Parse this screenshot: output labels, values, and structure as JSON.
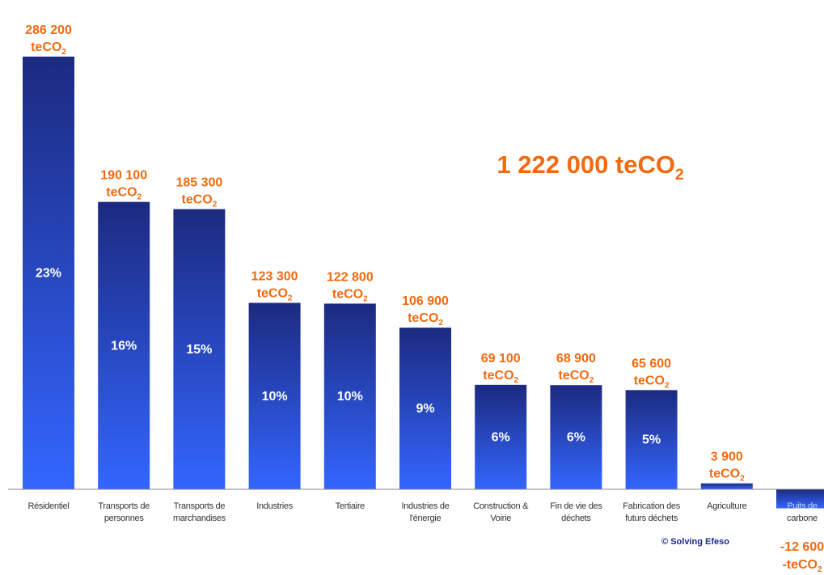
{
  "chart_data": {
    "type": "bar",
    "unit": "teCO2",
    "total_label": "1 222 000 teCO2",
    "total_main": "1 222 000 teCO",
    "total_sub": "2",
    "credit": "© Solving Efeso",
    "colors": {
      "bar_top": "#1c2a80",
      "bar_bottom": "#3366ff",
      "value_label": "#f26a10",
      "percent_label": "#ffffff",
      "axis": "#888888"
    },
    "bars": [
      {
        "category": [
          "Résidentiel"
        ],
        "value": 286200,
        "value_label": "286 200",
        "unit_label": "teCO2",
        "unit_main": "teCO",
        "unit_sub": "2",
        "percent": "23%"
      },
      {
        "category": [
          "Transports de",
          "personnes"
        ],
        "value": 190100,
        "value_label": "190 100",
        "unit_label": "teCO2",
        "unit_main": "teCO",
        "unit_sub": "2",
        "percent": "16%"
      },
      {
        "category": [
          "Transports de",
          "marchandises"
        ],
        "value": 185300,
        "value_label": "185 300",
        "unit_label": "teCO2",
        "unit_main": "teCO",
        "unit_sub": "2",
        "percent": "15%"
      },
      {
        "category": [
          "Industries"
        ],
        "value": 123300,
        "value_label": "123 300",
        "unit_label": "teCO2",
        "unit_main": "teCO",
        "unit_sub": "2",
        "percent": "10%"
      },
      {
        "category": [
          "Tertiaire"
        ],
        "value": 122800,
        "value_label": "122 800",
        "unit_label": "teCO2",
        "unit_main": "teCO",
        "unit_sub": "2",
        "percent": "10%"
      },
      {
        "category": [
          "Industries de",
          "l'énergie"
        ],
        "value": 106900,
        "value_label": "106 900",
        "unit_label": "teCO2",
        "unit_main": "teCO",
        "unit_sub": "2",
        "percent": "9%"
      },
      {
        "category": [
          "Construction &",
          "Voirie"
        ],
        "value": 69100,
        "value_label": "69 100",
        "unit_label": "teCO2",
        "unit_main": "teCO",
        "unit_sub": "2",
        "percent": "6%"
      },
      {
        "category": [
          "Fin de vie des",
          "déchets"
        ],
        "value": 68900,
        "value_label": "68 900",
        "unit_label": "teCO2",
        "unit_main": "teCO",
        "unit_sub": "2",
        "percent": "6%"
      },
      {
        "category": [
          "Fabrication des",
          "futurs déchets"
        ],
        "value": 65600,
        "value_label": "65 600",
        "unit_label": "teCO2",
        "unit_main": "teCO",
        "unit_sub": "2",
        "percent": "5%"
      },
      {
        "category": [
          "Agriculture"
        ],
        "value": 3900,
        "value_label": "3 900",
        "unit_label": "teCO2",
        "unit_main": "teCO",
        "unit_sub": "2",
        "percent": ""
      },
      {
        "category": [
          "Puits de",
          "carbone"
        ],
        "value": -12600,
        "value_label": "-12 600",
        "unit_label": "-teCO2",
        "unit_main": "-teCO",
        "unit_sub": "2",
        "percent": ""
      }
    ]
  }
}
